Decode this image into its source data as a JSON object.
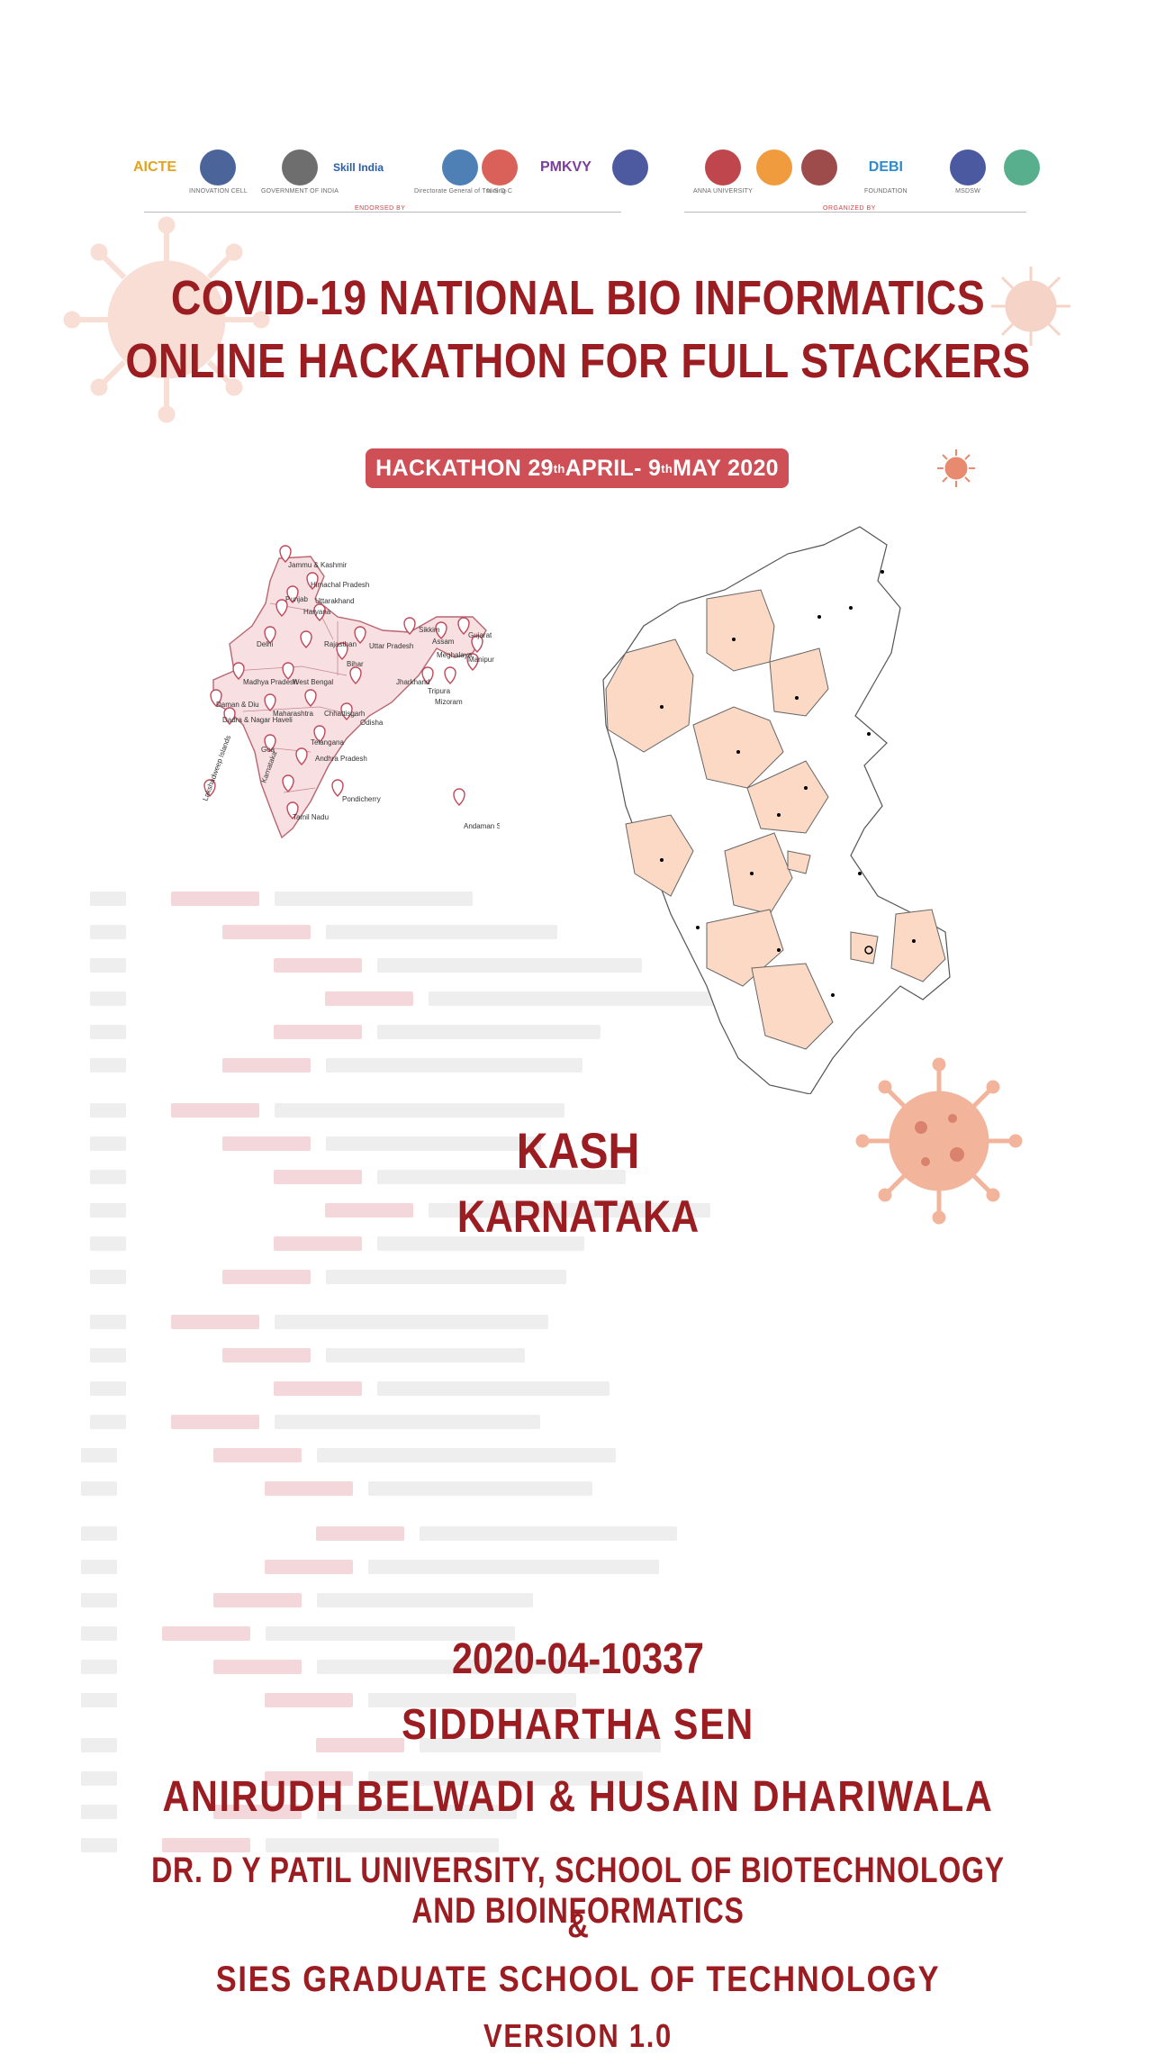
{
  "logos": {
    "endorsed_label": "ENDORSED BY",
    "organized_label": "ORGANIZED BY",
    "items": [
      {
        "name": "aicte-logo",
        "text": "AICTE",
        "caption": ""
      },
      {
        "name": "innovation-cell-logo",
        "text": "",
        "caption": "INNOVATION CELL"
      },
      {
        "name": "msde-emblem-logo",
        "text": "",
        "caption": "GOVERNMENT OF INDIA"
      },
      {
        "name": "skill-india-logo",
        "text": "Skill India",
        "caption": ""
      },
      {
        "name": "dgt-logo",
        "text": "",
        "caption": "Directorate General of Training"
      },
      {
        "name": "nsdc-logo",
        "text": "",
        "caption": "N·S·D·C"
      },
      {
        "name": "pmkvy-logo",
        "text": "PMKVY",
        "caption": ""
      },
      {
        "name": "org-logo-8",
        "text": "",
        "caption": ""
      },
      {
        "name": "anna-university-logo",
        "text": "",
        "caption": "ANNA UNIVERSITY"
      },
      {
        "name": "org-logo-10",
        "text": "",
        "caption": ""
      },
      {
        "name": "org-logo-11",
        "text": "",
        "caption": ""
      },
      {
        "name": "debi-logo",
        "text": "DEBI",
        "caption": "FOUNDATION"
      },
      {
        "name": "org-logo-13",
        "text": "",
        "caption": "MSDSW"
      },
      {
        "name": "org-logo-14",
        "text": "",
        "caption": ""
      }
    ]
  },
  "title": {
    "line1": "COVID-19 NATIONAL BIO INFORMATICS",
    "line2": "ONLINE HACKATHON FOR FULL STACKERS"
  },
  "badge": {
    "prefix": "HACKATHON  29",
    "sup1": "th",
    "middle": " APRIL- 9",
    "sup2": "th",
    "suffix": " MAY 2020"
  },
  "india_map": {
    "labels": [
      "Jammu & Kashmir",
      "Himachal Pradesh",
      "Punjab",
      "Uttarakhand",
      "Haryana",
      "Delhi",
      "Rajasthan",
      "Uttar Pradesh",
      "Bihar",
      "Sikkim",
      "Assam",
      "Meghalaya",
      "Gujarat",
      "Madhya Pradesh",
      "West Bengal",
      "Jharkhand",
      "Tripura",
      "Mizoram",
      "Manipur",
      "Daman & Diu",
      "Dadra & Nagar Haveli",
      "Maharashtra",
      "Chhattisgarh",
      "Odisha",
      "Telangana",
      "Goa",
      "Andhra Pradesh",
      "Karnataka",
      "Pondicherry",
      "Tamil Nadu",
      "Lakshadweep Islands",
      "Andaman Sea"
    ]
  },
  "region": {
    "name": "KASH",
    "state": "KARNATAKA"
  },
  "details": {
    "project_id": "2020-04-10337",
    "author": "SIDDHARTHA SEN",
    "mentors": "ANIRUDH BELWADI & HUSAIN DHARIWALA",
    "institution_1": "DR. D Y PATIL UNIVERSITY, SCHOOL OF BIOTECHNOLOGY AND BIOINFORMATICS",
    "ampersand": "&",
    "institution_2": "SIES GRADUATE SCHOOL OF TECHNOLOGY",
    "version": "VERSION 1.0"
  },
  "colors": {
    "title": "#9b1d22",
    "badge": "#cf4f57",
    "virus": "#f0b8a2",
    "map_fill": "#fbd9c4"
  }
}
